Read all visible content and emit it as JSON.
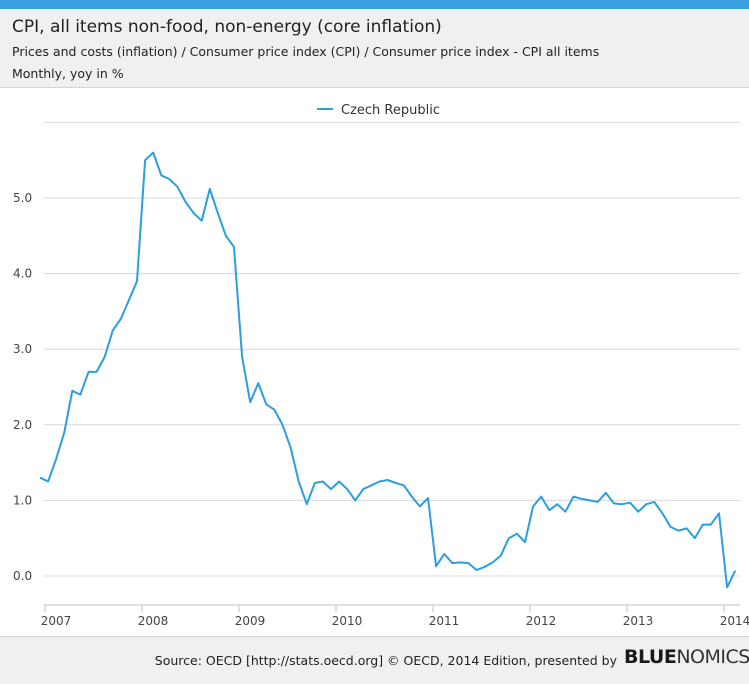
{
  "header": {
    "title": "CPI, all items non-food, non-energy (core inflation)",
    "subtitle": "Prices and costs (inflation) / Consumer price index (CPI) / Consumer price index - CPI all items",
    "unit": "Monthly, yoy in %"
  },
  "footer": {
    "source": "Source: OECD [http://stats.oecd.org] © OECD, 2014 Edition, presented by",
    "brand_bold": "BLUE",
    "brand_rest": "NOMICS"
  },
  "colors": {
    "accent": "#3aa0e0",
    "series": "#2b9ee0",
    "brand": "#1a1a1a"
  },
  "chart_data": {
    "type": "line",
    "title": "CPI, all items non-food, non-energy (core inflation)",
    "ylabel": "",
    "xlabel": "",
    "ylim": [
      -0.4,
      6.0
    ],
    "yticks": [
      0.0,
      1.0,
      2.0,
      3.0,
      4.0,
      5.0
    ],
    "ytick_labels": [
      "0.0",
      "1.0",
      "2.0",
      "3.0",
      "4.0",
      "5.0"
    ],
    "xticks": [
      "2007",
      "2008",
      "2009",
      "2010",
      "2011",
      "2012",
      "2013",
      "2014"
    ],
    "grid": true,
    "legend": "top-center",
    "series": [
      {
        "name": "Czech Republic",
        "start": "2007-01",
        "frequency": "monthly",
        "values": [
          1.3,
          1.25,
          1.55,
          1.9,
          2.45,
          2.4,
          2.7,
          2.7,
          2.9,
          3.25,
          3.4,
          3.65,
          3.9,
          5.5,
          5.6,
          5.3,
          5.25,
          5.15,
          4.95,
          4.8,
          4.7,
          5.12,
          4.8,
          4.5,
          4.35,
          2.9,
          2.3,
          2.55,
          2.27,
          2.2,
          2.0,
          1.7,
          1.25,
          0.95,
          1.23,
          1.25,
          1.15,
          1.25,
          1.15,
          1.0,
          1.15,
          1.2,
          1.25,
          1.27,
          1.23,
          1.2,
          1.05,
          0.92,
          1.03,
          0.13,
          0.29,
          0.17,
          0.18,
          0.17,
          0.08,
          0.12,
          0.18,
          0.27,
          0.5,
          0.56,
          0.45,
          0.92,
          1.05,
          0.87,
          0.95,
          0.85,
          1.05,
          1.02,
          1.0,
          0.98,
          1.1,
          0.96,
          0.95,
          0.97,
          0.85,
          0.95,
          0.98,
          0.83,
          0.65,
          0.6,
          0.63,
          0.5,
          0.68,
          0.68,
          0.83,
          -0.15,
          0.07
        ]
      }
    ]
  }
}
